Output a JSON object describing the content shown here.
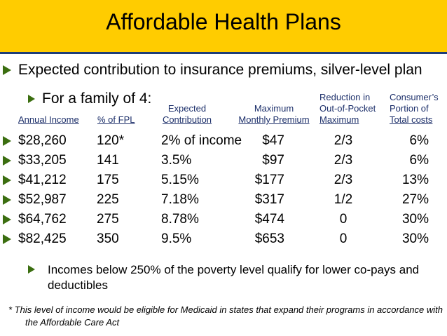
{
  "title": "Affordable Health Plans",
  "subtitle": "Expected contribution to insurance premiums, silver-level plan",
  "family_label": "For a family of 4:",
  "headers": {
    "income": "Annual Income",
    "fpl": "% of FPL",
    "contribution": [
      "Expected",
      "Contribution"
    ],
    "premium": [
      "Maximum",
      "Monthly Premium"
    ],
    "oop": [
      "Reduction in",
      "Out-of-Pocket",
      "Maximum"
    ],
    "share": [
      "Consumer’s",
      "Portion of",
      "Total costs"
    ]
  },
  "rows": [
    {
      "income": "$28,260",
      "fpl": "120*",
      "contribution": "2% of income",
      "premium": "$47",
      "oop": "2/3",
      "share": "6%"
    },
    {
      "income": "$33,205",
      "fpl": "141",
      "contribution": "3.5%",
      "premium": "$97",
      "oop": "2/3",
      "share": "6%"
    },
    {
      "income": "$41,212",
      "fpl": "175",
      "contribution": "5.15%",
      "premium": "$177",
      "oop": "2/3",
      "share": "13%"
    },
    {
      "income": "$52,987",
      "fpl": "225",
      "contribution": "7.18%",
      "premium": "$317",
      "oop": "1/2",
      "share": "27%"
    },
    {
      "income": "$64,762",
      "fpl": "275",
      "contribution": "8.78%",
      "premium": "$474",
      "oop": "0",
      "share": "30%"
    },
    {
      "income": "$82,425",
      "fpl": "350",
      "contribution": "9.5%",
      "premium": "$653",
      "oop": "0",
      "share": "30%"
    }
  ],
  "note": "Incomes below 250% of the poverty level qualify for lower co-pays and deductibles",
  "footnote": [
    "* This level of income would be eligible for Medicaid in states that expand their programs in accordance with",
    "the Affordable Care Act"
  ],
  "colors": {
    "banner": "#ffcc00",
    "rule": "#1f3e78",
    "bullet": "#3b6e10",
    "header_text": "#1c2f6a"
  }
}
